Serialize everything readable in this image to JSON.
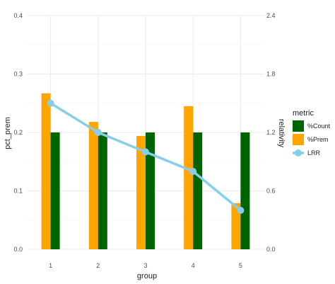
{
  "chart_data": {
    "type": "bar",
    "categories": [
      "1",
      "2",
      "3",
      "4",
      "5"
    ],
    "xlabel": "group",
    "ylabel": "pct_prem",
    "y2label": "relativity",
    "ylim": [
      0,
      0.4
    ],
    "y2lim": [
      0,
      2.4
    ],
    "yticks": [
      "0.0",
      "0.1",
      "0.2",
      "0.3",
      "0.4"
    ],
    "y2ticks": [
      "0.0",
      "0.6",
      "1.2",
      "1.8",
      "2.4"
    ],
    "series": [
      {
        "name": "%Prem",
        "type": "bar",
        "color": "#FFA500",
        "values": [
          0.267,
          0.218,
          0.194,
          0.245,
          0.079
        ]
      },
      {
        "name": "%Count",
        "type": "bar",
        "color": "#006400",
        "values": [
          0.2,
          0.2,
          0.2,
          0.2,
          0.2
        ]
      },
      {
        "name": "LRR",
        "type": "line",
        "axis": "right",
        "color": "#87CEEB",
        "values": [
          1.5,
          1.2,
          1.0,
          0.8,
          0.4
        ]
      }
    ],
    "legend": {
      "title": "metric",
      "position": "right",
      "items": [
        {
          "label": "%Count",
          "color": "#006400",
          "shape": "box"
        },
        {
          "label": "%Prem",
          "color": "#FFA500",
          "shape": "box"
        },
        {
          "label": "LRR",
          "color": "#87CEEB",
          "shape": "line-point"
        }
      ]
    },
    "grid": true
  }
}
